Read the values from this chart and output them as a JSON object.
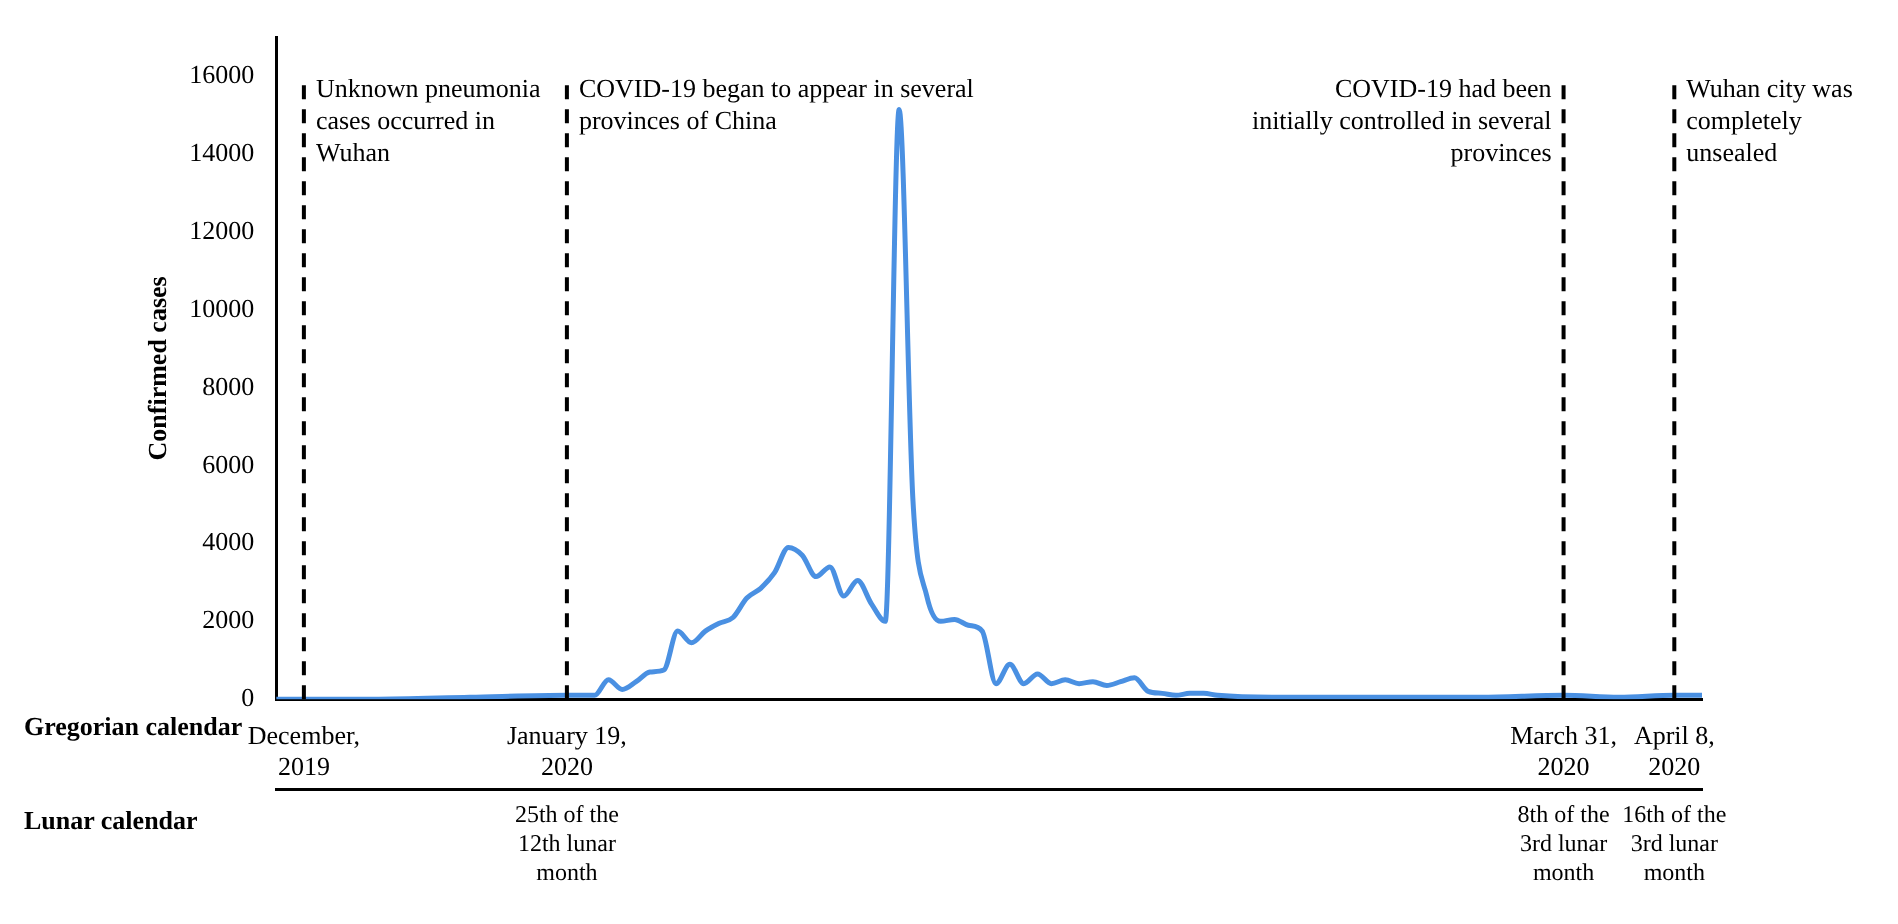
{
  "chart_data": {
    "type": "line",
    "ylabel": "Confirmed cases",
    "xlabel": "Gregorian calendar",
    "color": "#4a90e2",
    "x": [
      "2019-12-29",
      "2020-01-05",
      "2020-01-12",
      "2020-01-19",
      "2020-01-20",
      "2020-01-21",
      "2020-01-22",
      "2020-01-23",
      "2020-01-24",
      "2020-01-25",
      "2020-01-26",
      "2020-01-27",
      "2020-01-28",
      "2020-01-29",
      "2020-01-30",
      "2020-01-31",
      "2020-02-01",
      "2020-02-02",
      "2020-02-03",
      "2020-02-04",
      "2020-02-05",
      "2020-02-06",
      "2020-02-07",
      "2020-02-08",
      "2020-02-09",
      "2020-02-10",
      "2020-02-11",
      "2020-02-12",
      "2020-02-13",
      "2020-02-14",
      "2020-02-15",
      "2020-02-16",
      "2020-02-17",
      "2020-02-18",
      "2020-02-19",
      "2020-02-20",
      "2020-02-21",
      "2020-02-22",
      "2020-02-23",
      "2020-02-24",
      "2020-02-25",
      "2020-02-26",
      "2020-02-27",
      "2020-02-28",
      "2020-02-29",
      "2020-03-01",
      "2020-03-02",
      "2020-03-03",
      "2020-03-04",
      "2020-03-05",
      "2020-03-06",
      "2020-03-10",
      "2020-03-15",
      "2020-03-20",
      "2020-03-25",
      "2020-03-31",
      "2020-04-04",
      "2020-04-08",
      "2020-04-10"
    ],
    "values": [
      0,
      0,
      50,
      100,
      100,
      100,
      500,
      250,
      450,
      700,
      750,
      1750,
      1450,
      1750,
      1950,
      2100,
      2600,
      2850,
      3250,
      3900,
      3700,
      3150,
      3400,
      2650,
      3050,
      2450,
      2000,
      15150,
      5100,
      2650,
      2000,
      2050,
      1900,
      1750,
      400,
      900,
      400,
      650,
      400,
      500,
      400,
      450,
      350,
      450,
      550,
      200,
      150,
      100,
      150,
      150,
      100,
      50,
      50,
      50,
      50,
      100,
      50,
      100,
      100
    ],
    "xlim": [
      "2019-12-29",
      "2020-04-10"
    ],
    "ylim": [
      0,
      17000
    ],
    "xticks": [
      {
        "value": "2019-12-31",
        "label": "December, 2019"
      },
      {
        "value": "2020-01-19",
        "label": "January 19, 2020"
      },
      {
        "value": "2020-03-31",
        "label": "March 31, 2020"
      },
      {
        "value": "2020-04-08",
        "label": "April 8, 2020"
      }
    ],
    "yticks": [
      0,
      2000,
      4000,
      6000,
      8000,
      10000,
      12000,
      14000,
      16000
    ],
    "ref_lines": [
      {
        "axis": "x",
        "value": "2019-12-31",
        "label": "Unknown pneumonia cases occurred in Wuhan",
        "line_style": "dashed",
        "color": "#000000"
      },
      {
        "axis": "x",
        "value": "2020-01-19",
        "label": "COVID-19 began to appear in several provinces of China",
        "line_style": "dashed",
        "color": "#000000"
      },
      {
        "axis": "x",
        "value": "2020-03-31",
        "label": "COVID-19 had been initially controlled in several provinces",
        "line_style": "dashed",
        "color": "#000000"
      },
      {
        "axis": "x",
        "value": "2020-04-08",
        "label": "Wuhan city was completely unsealed",
        "line_style": "dashed",
        "color": "#000000"
      }
    ],
    "x2label": "Lunar calendar",
    "x2lim": [
      "2019-12-29",
      "2020-04-10"
    ],
    "x2ticks": [
      {
        "value": "2020-01-19",
        "label": "25th of the 12th lunar month"
      },
      {
        "value": "2020-03-31",
        "label": "8th of the 3rd lunar month"
      },
      {
        "value": "2020-04-08",
        "label": "16th of the 3rd lunar month"
      }
    ]
  }
}
